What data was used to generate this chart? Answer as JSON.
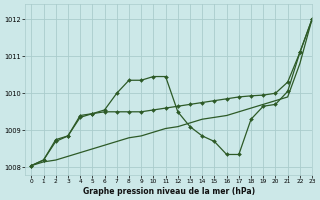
{
  "title": "Graphe pression niveau de la mer (hPa)",
  "bg_color": "#cce8e8",
  "grid_color": "#aacccc",
  "line_color": "#2d5a27",
  "xlim": [
    -0.5,
    23
  ],
  "ylim": [
    1007.8,
    1012.4
  ],
  "yticks": [
    1008,
    1009,
    1010,
    1011,
    1012
  ],
  "xticks": [
    0,
    1,
    2,
    3,
    4,
    5,
    6,
    7,
    8,
    9,
    10,
    11,
    12,
    13,
    14,
    15,
    16,
    17,
    18,
    19,
    20,
    21,
    22,
    23
  ],
  "series": [
    {
      "x": [
        0,
        1,
        2,
        3,
        4,
        5,
        6,
        7,
        8,
        9,
        10,
        11,
        12,
        13,
        14,
        15,
        16,
        17,
        18,
        19,
        20,
        21,
        22,
        23
      ],
      "y": [
        1008.05,
        1008.15,
        1008.2,
        1008.3,
        1008.4,
        1008.5,
        1008.6,
        1008.7,
        1008.8,
        1008.85,
        1008.95,
        1009.05,
        1009.1,
        1009.2,
        1009.3,
        1009.35,
        1009.4,
        1009.5,
        1009.6,
        1009.7,
        1009.8,
        1009.9,
        1010.8,
        1012.0
      ],
      "marker": false,
      "linewidth": 0.9
    },
    {
      "x": [
        0,
        1,
        2,
        3,
        4,
        5,
        6,
        7,
        8,
        9,
        10,
        11,
        12,
        13,
        14,
        15,
        16,
        17,
        18,
        19,
        20,
        21,
        22,
        23
      ],
      "y": [
        1008.05,
        1008.2,
        1008.7,
        1008.85,
        1009.35,
        1009.45,
        1009.5,
        1009.5,
        1009.5,
        1009.5,
        1009.55,
        1009.6,
        1009.65,
        1009.7,
        1009.75,
        1009.8,
        1009.85,
        1009.9,
        1009.93,
        1009.95,
        1010.0,
        1010.3,
        1011.1,
        1012.0
      ],
      "marker": true,
      "linewidth": 0.9
    },
    {
      "x": [
        0,
        1,
        2,
        3,
        4,
        5,
        6,
        7,
        8,
        9,
        10,
        11,
        12,
        13,
        14,
        15,
        16,
        17,
        18,
        19,
        20,
        21,
        22,
        23
      ],
      "y": [
        1008.05,
        1008.2,
        1008.75,
        1008.85,
        1009.4,
        1009.45,
        1009.55,
        1010.0,
        1010.35,
        1010.35,
        1010.45,
        1010.45,
        1009.5,
        1009.1,
        1008.85,
        1008.7,
        1008.35,
        1008.35,
        1009.3,
        1009.65,
        1009.7,
        1010.05,
        1011.1,
        1012.0
      ],
      "marker": true,
      "linewidth": 0.9
    }
  ]
}
